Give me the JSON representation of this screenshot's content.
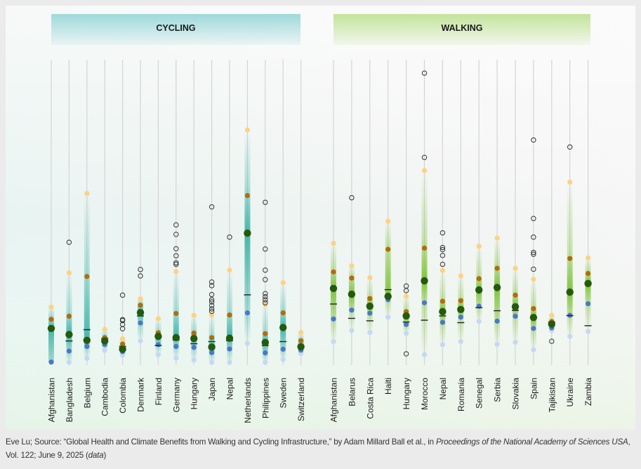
{
  "colors": {
    "cycling_band": "#3cb5a8",
    "walking_band": "#7cc234",
    "p90": "#ffd27f",
    "p75": "#b36b0b",
    "median": "#245a0c",
    "p25": "#4a78c8",
    "p10": "#c5d8f5",
    "outlier": "#333333",
    "mean": "#222222"
  },
  "chart_data": {
    "type": "scatter",
    "title": "",
    "xlabel": "",
    "ylabel": "",
    "ylim": [
      0,
      100
    ],
    "note": "Unitless relative scale (no axis printed). Per country: p90 (yellow), p75 (orange), median (large green), p25 (blue), p10 (light blue), mean (dash), outliers (hollow circles).",
    "panels": [
      {
        "name": "CYCLING",
        "countries": [
          {
            "label": "Afghanistan",
            "p90": 19.0,
            "p75": 15.0,
            "median": 12.0,
            "mean": 12.1,
            "p25": 1.0,
            "p10": null,
            "outliers": []
          },
          {
            "label": "Bangladesh",
            "p90": 30.2,
            "p75": 16.0,
            "median": 10.0,
            "mean": 7.9,
            "p25": 4.6,
            "p10": 0.9,
            "outliers": [
              40.2
            ]
          },
          {
            "label": "Belgium",
            "p90": 56.2,
            "p75": 29.0,
            "median": 8.1,
            "mean": 11.6,
            "p25": 6.1,
            "p10": 2.2,
            "outliers": []
          },
          {
            "label": "Cambodia",
            "p90": 11.7,
            "p75": 9.0,
            "median": 7.9,
            "mean": 8.7,
            "p25": 6.7,
            "p10": 4.8,
            "outliers": []
          },
          {
            "label": "Colombia",
            "p90": 8.6,
            "p75": 6.9,
            "median": 5.2,
            "mean": 6.1,
            "p25": 4.4,
            "p10": 3.2,
            "outliers": [
              22.9,
              14.9,
              14.6,
              13.3,
              11.9
            ]
          },
          {
            "label": "Denmark",
            "p90": 21.7,
            "p75": 19.6,
            "median": 17.2,
            "mean": 16.1,
            "p25": 13.8,
            "p10": 7.9,
            "outliers": [
              31.3,
              29.2
            ]
          },
          {
            "label": "Finland",
            "p90": 15.2,
            "p75": 10.6,
            "median": 9.4,
            "mean": 6.4,
            "p25": 6.7,
            "p10": 3.4,
            "outliers": []
          },
          {
            "label": "Germany",
            "p90": 30.6,
            "p75": 16.9,
            "median": 9.0,
            "mean": 8.2,
            "p25": 6.1,
            "p10": 2.3,
            "outliers": [
              45.9,
              42.8,
              38.1,
              35.8,
              33.5,
              33.0
            ]
          },
          {
            "label": "Hungary",
            "p90": 16.3,
            "p75": 10.5,
            "median": 8.7,
            "mean": 7.0,
            "p25": 5.8,
            "p10": 1.7,
            "outliers": []
          },
          {
            "label": "Japan",
            "p90": 16.4,
            "p75": 9.0,
            "median": 5.9,
            "mean": 7.7,
            "p25": 4.1,
            "p10": 0.9,
            "outliers": [
              51.8,
              27.2,
              26.0,
              23.1,
              21.4,
              20.7,
              19.5,
              18.4,
              17.6
            ]
          },
          {
            "label": "Nepal",
            "p90": 31.1,
            "p75": 16.4,
            "median": 8.8,
            "mean": 8.0,
            "p25": 5.3,
            "p10": 0.9,
            "outliers": [
              41.9
            ]
          },
          {
            "label": "Netherlands",
            "p90": 77.0,
            "p75": 55.5,
            "median": 43.2,
            "mean": 23.0,
            "p25": 17.1,
            "p10": 7.1,
            "outliers": []
          },
          {
            "label": "Philippines",
            "p90": 19.8,
            "p75": 10.3,
            "median": 7.4,
            "mean": 6.4,
            "p25": 4.0,
            "p10": 0.9,
            "outliers": [
              53.3,
              38.0,
              31.1,
              28.0,
              23.4,
              22.4,
              21.4,
              20.4
            ]
          },
          {
            "label": "Sweden",
            "p90": 27.0,
            "p75": 17.1,
            "median": 12.3,
            "mean": 7.7,
            "p25": 5.2,
            "p10": 1.8,
            "outliers": []
          },
          {
            "label": "Switzerland",
            "p90": 10.7,
            "p75": 8.0,
            "median": 6.0,
            "mean": 6.1,
            "p25": 4.9,
            "p10": 3.8,
            "outliers": []
          }
        ]
      },
      {
        "name": "WALKING",
        "countries": [
          {
            "label": "Afghanistan",
            "p90": 39.9,
            "p75": 30.5,
            "median": 25.1,
            "mean": 20.0,
            "p25": 15.1,
            "p10": 7.7,
            "outliers": []
          },
          {
            "label": "Belarus",
            "p90": 32.5,
            "p75": 28.5,
            "median": 23.2,
            "mean": 15.3,
            "p25": 18.0,
            "p10": 11.3,
            "outliers": [
              54.8
            ]
          },
          {
            "label": "Costa Rica",
            "p90": 28.6,
            "p75": 21.8,
            "median": 19.3,
            "mean": 14.5,
            "p25": 17.0,
            "p10": 10.7,
            "outliers": []
          },
          {
            "label": "Haiti",
            "p90": 47.1,
            "p75": 37.9,
            "median": 22.5,
            "mean": 24.7,
            "p25": 21.4,
            "p10": 15.7,
            "outliers": []
          },
          {
            "label": "Hungary",
            "p90": 22.5,
            "p75": 17.5,
            "median": 16.1,
            "mean": 14.1,
            "p25": 13.3,
            "p10": 10.4,
            "outliers": [
              25.9,
              24.4,
              3.7
            ]
          },
          {
            "label": "Morocco",
            "p90": 63.7,
            "p75": 38.3,
            "median": 27.6,
            "mean": 14.7,
            "p25": 20.4,
            "p10": 3.4,
            "outliers": [
              95.6,
              68.0
            ]
          },
          {
            "label": "Nepal",
            "p90": 31.0,
            "p75": 20.9,
            "median": 17.5,
            "mean": 16.1,
            "p25": 14.0,
            "p10": 6.7,
            "outliers": [
              43.3,
              38.5,
              37.8,
              35.9,
              33.0
            ]
          },
          {
            "label": "Romania",
            "p90": 29.2,
            "p75": 21.1,
            "median": 18.2,
            "mean": 13.9,
            "p25": 15.7,
            "p10": 7.7,
            "outliers": []
          },
          {
            "label": "Senegal",
            "p90": 38.9,
            "p75": 28.3,
            "median": 24.6,
            "mean": 18.8,
            "p25": 19.3,
            "p10": 14.3,
            "outliers": []
          },
          {
            "label": "Serbia",
            "p90": 41.6,
            "p75": 31.7,
            "median": 25.4,
            "mean": 17.8,
            "p25": 14.4,
            "p10": 6.8,
            "outliers": []
          },
          {
            "label": "Slovakia",
            "p90": 31.7,
            "p75": 22.9,
            "median": 19.1,
            "mean": 17.9,
            "p25": 16.0,
            "p10": 7.5,
            "outliers": []
          },
          {
            "label": "Spain",
            "p90": 28.1,
            "p75": 18.5,
            "median": 15.6,
            "mean": 15.6,
            "p25": 12.0,
            "p10": 5.0,
            "outliers": [
              73.7,
              48.0,
              41.9,
              36.9,
              36.3,
              31.4
            ]
          },
          {
            "label": "Tajikistan",
            "p90": 16.3,
            "p75": 14.3,
            "median": 13.4,
            "mean": 14.1,
            "p25": 12.2,
            "p10": 11.3,
            "outliers": [
              7.8
            ]
          },
          {
            "label": "Ukraine",
            "p90": 59.9,
            "p75": 34.9,
            "median": 23.9,
            "mean": 16.2,
            "p25": 16.3,
            "p10": 9.4,
            "outliers": [
              71.4
            ]
          },
          {
            "label": "Zambia",
            "p90": 35.1,
            "p75": 30.0,
            "median": 26.7,
            "mean": 12.9,
            "p25": 20.1,
            "p10": 11.0,
            "outliers": []
          }
        ]
      }
    ]
  },
  "caption": {
    "part1": "Eve Lu; Source: “Global Health and Climate Benefits from Walking and Cycling Infrastructure,” by Adam Millard Ball et al., in ",
    "journal": "Proceedings of the National Academy of Sciences USA",
    "part2": ", Vol. 122; June 9, 2025 (",
    "link": "data",
    "part3": ")"
  }
}
